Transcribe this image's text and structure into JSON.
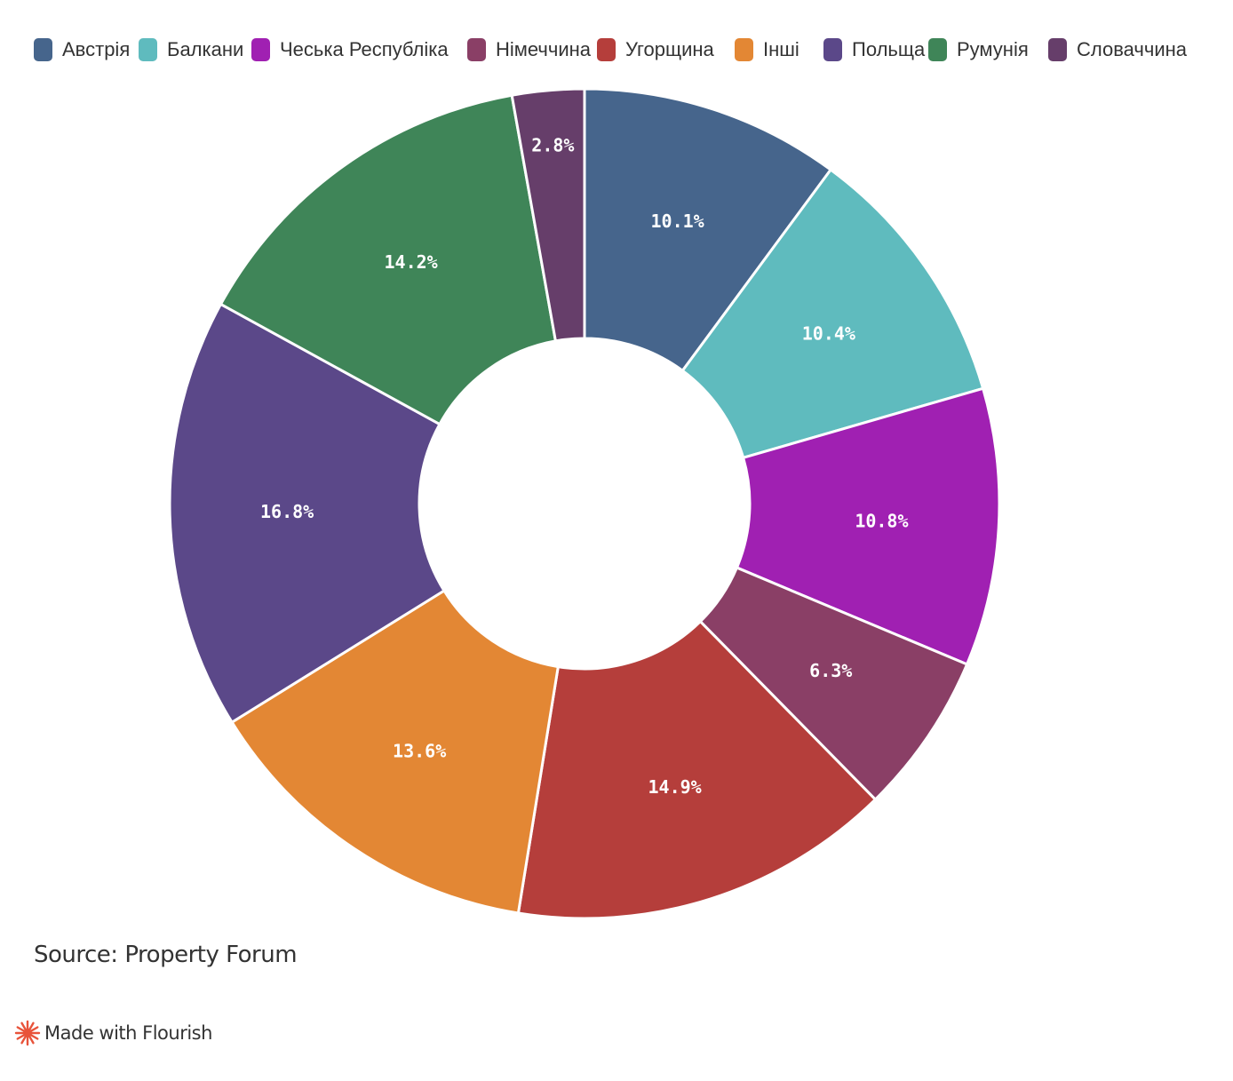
{
  "chart_data": {
    "type": "pie",
    "variant": "donut",
    "legend_position": "top",
    "categories": [
      "Австрія",
      "Балкани",
      "Чеська Республіка",
      "Німеччина",
      "Угорщина",
      "Інші",
      "Польща",
      "Румунія",
      "Словаччина"
    ],
    "values": [
      10.1,
      10.4,
      10.8,
      6.3,
      14.9,
      13.6,
      16.8,
      14.2,
      2.8
    ],
    "value_labels": [
      "10.1%",
      "10.4%",
      "10.8%",
      "6.3%",
      "14.9%",
      "13.6%",
      "16.8%",
      "14.2%",
      "2.8%"
    ],
    "unit": "%",
    "colors": [
      "#46658c",
      "#5fbbbe",
      "#a020b2",
      "#8a3f66",
      "#b53e3b",
      "#e38734",
      "#5b4889",
      "#3f8558",
      "#663e6a"
    ]
  },
  "source": "Source: Property Forum",
  "credit": {
    "text": "Made with Flourish",
    "icon": "flourish-logo-icon",
    "color": "#e8533a"
  }
}
